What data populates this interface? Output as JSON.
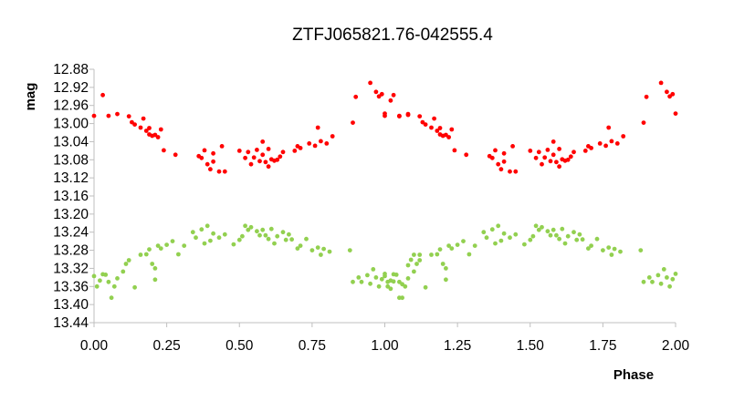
{
  "chart_data": {
    "type": "scatter",
    "title": "ZTFJ065821.76-042555.4",
    "xlabel": "Phase",
    "ylabel": "mag",
    "xlim": [
      0,
      2
    ],
    "ylim": [
      12.88,
      13.44
    ],
    "y_inverted": true,
    "grid": false,
    "legend": "none",
    "x_ticks": [
      "0.00",
      "0.25",
      "0.50",
      "0.75",
      "1.00",
      "1.25",
      "1.50",
      "1.75",
      "2.00"
    ],
    "y_ticks": [
      "12.88",
      "12.92",
      "12.96",
      "13.00",
      "13.04",
      "13.08",
      "13.12",
      "13.16",
      "13.20",
      "13.24",
      "13.28",
      "13.32",
      "13.36",
      "13.40",
      "13.44"
    ],
    "series": [
      {
        "color": "#ff0000",
        "points": [
          [
            0.0,
            12.983
          ],
          [
            0.03,
            12.937
          ],
          [
            0.05,
            12.983
          ],
          [
            0.08,
            12.979
          ],
          [
            0.12,
            12.984
          ],
          [
            0.13,
            12.997
          ],
          [
            0.14,
            13.002
          ],
          [
            0.16,
            13.009
          ],
          [
            0.17,
            12.989
          ],
          [
            0.18,
            13.016
          ],
          [
            0.19,
            13.024
          ],
          [
            0.19,
            13.01
          ],
          [
            0.2,
            13.027
          ],
          [
            0.21,
            13.025
          ],
          [
            0.22,
            13.03
          ],
          [
            0.23,
            13.013
          ],
          [
            0.24,
            13.059
          ],
          [
            0.28,
            13.069
          ],
          [
            0.36,
            13.072
          ],
          [
            0.37,
            13.076
          ],
          [
            0.38,
            13.059
          ],
          [
            0.39,
            13.09
          ],
          [
            0.4,
            13.101
          ],
          [
            0.41,
            13.084
          ],
          [
            0.41,
            13.066
          ],
          [
            0.43,
            13.106
          ],
          [
            0.45,
            13.106
          ],
          [
            0.44,
            13.05
          ],
          [
            0.5,
            13.06
          ],
          [
            0.52,
            13.076
          ],
          [
            0.53,
            13.063
          ],
          [
            0.54,
            13.09
          ],
          [
            0.55,
            13.075
          ],
          [
            0.56,
            13.058
          ],
          [
            0.57,
            13.083
          ],
          [
            0.58,
            13.069
          ],
          [
            0.58,
            13.04
          ],
          [
            0.59,
            13.085
          ],
          [
            0.6,
            13.095
          ],
          [
            0.6,
            13.056
          ],
          [
            0.61,
            13.079
          ],
          [
            0.62,
            13.082
          ],
          [
            0.63,
            13.08
          ],
          [
            0.64,
            13.073
          ],
          [
            0.65,
            13.063
          ],
          [
            0.69,
            13.06
          ],
          [
            0.7,
            13.05
          ],
          [
            0.71,
            13.054
          ],
          [
            0.74,
            13.044
          ],
          [
            0.76,
            13.049
          ],
          [
            0.77,
            13.009
          ],
          [
            0.78,
            13.039
          ],
          [
            0.8,
            13.044
          ],
          [
            0.82,
            13.028
          ],
          [
            0.89,
            12.998
          ],
          [
            0.9,
            12.941
          ],
          [
            0.95,
            12.91
          ],
          [
            0.97,
            12.93
          ],
          [
            0.98,
            12.94
          ],
          [
            0.99,
            12.935
          ],
          [
            1.0,
            12.978
          ],
          [
            1.02,
            12.949
          ],
          [
            1.05,
            12.984
          ],
          [
            1.08,
            12.981
          ]
        ]
      },
      {
        "color": "#92d050",
        "points": [
          [
            0.0,
            13.337
          ],
          [
            0.01,
            13.36
          ],
          [
            0.02,
            13.347
          ],
          [
            0.03,
            13.333
          ],
          [
            0.04,
            13.334
          ],
          [
            0.05,
            13.35
          ],
          [
            0.06,
            13.385
          ],
          [
            0.07,
            13.36
          ],
          [
            0.08,
            13.342
          ],
          [
            0.1,
            13.327
          ],
          [
            0.11,
            13.31
          ],
          [
            0.12,
            13.302
          ],
          [
            0.14,
            13.362
          ],
          [
            0.16,
            13.29
          ],
          [
            0.18,
            13.289
          ],
          [
            0.19,
            13.278
          ],
          [
            0.2,
            13.31
          ],
          [
            0.21,
            13.345
          ],
          [
            0.21,
            13.32
          ],
          [
            0.22,
            13.27
          ],
          [
            0.23,
            13.276
          ],
          [
            0.25,
            13.268
          ],
          [
            0.27,
            13.26
          ],
          [
            0.29,
            13.289
          ],
          [
            0.31,
            13.27
          ],
          [
            0.34,
            13.24
          ],
          [
            0.35,
            13.252
          ],
          [
            0.37,
            13.234
          ],
          [
            0.38,
            13.265
          ],
          [
            0.39,
            13.226
          ],
          [
            0.4,
            13.259
          ],
          [
            0.41,
            13.243
          ],
          [
            0.43,
            13.252
          ],
          [
            0.45,
            13.245
          ],
          [
            0.48,
            13.267
          ],
          [
            0.5,
            13.257
          ],
          [
            0.51,
            13.249
          ],
          [
            0.52,
            13.226
          ],
          [
            0.53,
            13.235
          ],
          [
            0.54,
            13.229
          ],
          [
            0.56,
            13.238
          ],
          [
            0.57,
            13.247
          ],
          [
            0.58,
            13.235
          ],
          [
            0.59,
            13.247
          ],
          [
            0.6,
            13.255
          ],
          [
            0.61,
            13.233
          ],
          [
            0.62,
            13.265
          ],
          [
            0.63,
            13.249
          ],
          [
            0.65,
            13.24
          ],
          [
            0.66,
            13.257
          ],
          [
            0.67,
            13.245
          ],
          [
            0.68,
            13.256
          ],
          [
            0.7,
            13.276
          ],
          [
            0.71,
            13.27
          ],
          [
            0.73,
            13.255
          ],
          [
            0.75,
            13.28
          ],
          [
            0.77,
            13.274
          ],
          [
            0.78,
            13.29
          ],
          [
            0.79,
            13.277
          ],
          [
            0.81,
            13.283
          ],
          [
            0.88,
            13.28
          ],
          [
            0.89,
            13.35
          ],
          [
            0.91,
            13.34
          ],
          [
            0.92,
            13.35
          ],
          [
            0.94,
            13.335
          ],
          [
            0.95,
            13.354
          ],
          [
            0.96,
            13.322
          ],
          [
            0.97,
            13.34
          ],
          [
            0.98,
            13.36
          ],
          [
            0.99,
            13.344
          ],
          [
            1.0,
            13.332
          ],
          [
            1.01,
            13.35
          ],
          [
            1.02,
            13.365
          ],
          [
            1.03,
            13.349
          ],
          [
            1.05,
            13.385
          ],
          [
            1.06,
            13.355
          ],
          [
            1.08,
            13.313
          ],
          [
            1.09,
            13.301
          ],
          [
            1.1,
            13.29
          ],
          [
            1.12,
            13.29
          ]
        ]
      }
    ]
  }
}
